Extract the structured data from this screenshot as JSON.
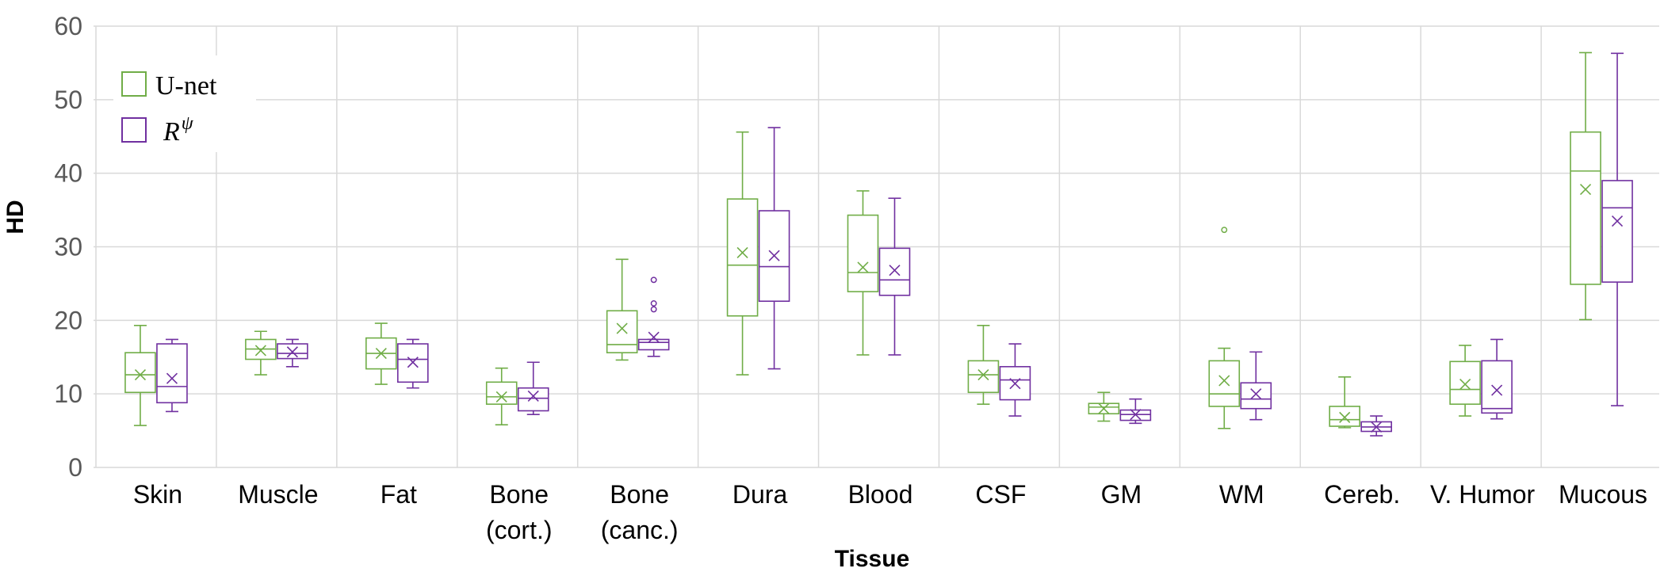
{
  "chart_data": {
    "type": "boxplot",
    "title": "",
    "xlabel": "Tissue",
    "ylabel": "HD",
    "ylim": [
      0,
      60
    ],
    "yticks": [
      0,
      10,
      20,
      30,
      40,
      50,
      60
    ],
    "grid": true,
    "legend_position": "top-left",
    "categories": [
      [
        "Skin"
      ],
      [
        "Muscle"
      ],
      [
        "Fat"
      ],
      [
        "Bone",
        "(cort.)"
      ],
      [
        "Bone",
        "(canc.)"
      ],
      [
        "Dura"
      ],
      [
        "Blood"
      ],
      [
        "CSF"
      ],
      [
        "GM"
      ],
      [
        "WM"
      ],
      [
        "Cereb."
      ],
      [
        "V. Humor"
      ],
      [
        "Mucous"
      ]
    ],
    "series": [
      {
        "name": "U-net",
        "color": "#70ad47",
        "boxes": [
          {
            "min": 5.7,
            "q1": 10.2,
            "median": 12.6,
            "q3": 15.6,
            "max": 19.3,
            "mean": 12.6,
            "outliers": []
          },
          {
            "min": 12.6,
            "q1": 14.7,
            "median": 16.1,
            "q3": 17.4,
            "max": 18.5,
            "mean": 15.9,
            "outliers": []
          },
          {
            "min": 11.3,
            "q1": 13.4,
            "median": 15.5,
            "q3": 17.6,
            "max": 19.6,
            "mean": 15.5,
            "outliers": []
          },
          {
            "min": 5.8,
            "q1": 8.6,
            "median": 9.6,
            "q3": 11.6,
            "max": 13.5,
            "mean": 9.6,
            "outliers": []
          },
          {
            "min": 14.6,
            "q1": 15.6,
            "median": 16.7,
            "q3": 21.3,
            "max": 28.3,
            "mean": 18.9,
            "outliers": []
          },
          {
            "min": 12.6,
            "q1": 20.6,
            "median": 27.5,
            "q3": 36.5,
            "max": 45.6,
            "mean": 29.2,
            "outliers": []
          },
          {
            "min": 15.3,
            "q1": 23.9,
            "median": 26.5,
            "q3": 34.3,
            "max": 37.6,
            "mean": 27.2,
            "outliers": []
          },
          {
            "min": 8.6,
            "q1": 10.2,
            "median": 12.6,
            "q3": 14.5,
            "max": 19.3,
            "mean": 12.6,
            "outliers": []
          },
          {
            "min": 6.3,
            "q1": 7.3,
            "median": 8.2,
            "q3": 8.7,
            "max": 10.2,
            "mean": 8.0,
            "outliers": []
          },
          {
            "min": 5.3,
            "q1": 8.3,
            "median": 10.0,
            "q3": 14.5,
            "max": 16.2,
            "mean": 11.8,
            "outliers": [
              32.3
            ]
          },
          {
            "min": 5.4,
            "q1": 5.6,
            "median": 6.5,
            "q3": 8.3,
            "max": 12.3,
            "mean": 6.8,
            "outliers": []
          },
          {
            "min": 7.0,
            "q1": 8.6,
            "median": 10.6,
            "q3": 14.4,
            "max": 16.6,
            "mean": 11.3,
            "outliers": []
          },
          {
            "min": 20.1,
            "q1": 24.9,
            "median": 40.3,
            "q3": 45.6,
            "max": 56.4,
            "mean": 37.8,
            "outliers": []
          }
        ]
      },
      {
        "name": "R^ψ",
        "color": "#7030a0",
        "boxes": [
          {
            "min": 7.6,
            "q1": 8.8,
            "median": 11.0,
            "q3": 16.8,
            "max": 17.4,
            "mean": 12.1,
            "outliers": []
          },
          {
            "min": 13.7,
            "q1": 14.8,
            "median": 15.5,
            "q3": 16.8,
            "max": 17.4,
            "mean": 15.7,
            "outliers": []
          },
          {
            "min": 10.8,
            "q1": 11.6,
            "median": 14.7,
            "q3": 16.8,
            "max": 17.4,
            "mean": 14.3,
            "outliers": []
          },
          {
            "min": 7.2,
            "q1": 7.7,
            "median": 9.4,
            "q3": 10.8,
            "max": 14.3,
            "mean": 9.7,
            "outliers": []
          },
          {
            "min": 15.1,
            "q1": 16.0,
            "median": 17.0,
            "q3": 17.4,
            "max": 17.4,
            "mean": 17.7,
            "outliers": [
              21.5,
              22.3,
              25.5
            ]
          },
          {
            "min": 13.4,
            "q1": 22.6,
            "median": 27.3,
            "q3": 34.9,
            "max": 46.2,
            "mean": 28.8,
            "outliers": []
          },
          {
            "min": 15.3,
            "q1": 23.4,
            "median": 25.5,
            "q3": 29.8,
            "max": 36.6,
            "mean": 26.8,
            "outliers": []
          },
          {
            "min": 7.0,
            "q1": 9.2,
            "median": 11.9,
            "q3": 13.7,
            "max": 16.8,
            "mean": 11.4,
            "outliers": []
          },
          {
            "min": 6.0,
            "q1": 6.4,
            "median": 7.2,
            "q3": 7.8,
            "max": 9.3,
            "mean": 7.2,
            "outliers": []
          },
          {
            "min": 6.5,
            "q1": 8.0,
            "median": 9.3,
            "q3": 11.5,
            "max": 15.7,
            "mean": 10.0,
            "outliers": []
          },
          {
            "min": 4.3,
            "q1": 4.9,
            "median": 5.5,
            "q3": 6.2,
            "max": 7.0,
            "mean": 5.5,
            "outliers": []
          },
          {
            "min": 6.6,
            "q1": 7.4,
            "median": 8.0,
            "q3": 14.5,
            "max": 17.4,
            "mean": 10.5,
            "outliers": []
          },
          {
            "min": 8.4,
            "q1": 25.2,
            "median": 35.3,
            "q3": 39.0,
            "max": 56.3,
            "mean": 33.5,
            "outliers": []
          }
        ]
      }
    ]
  },
  "legend": {
    "unet_label": "U-net",
    "rpsi_base": "R",
    "rpsi_sup": "ψ"
  }
}
